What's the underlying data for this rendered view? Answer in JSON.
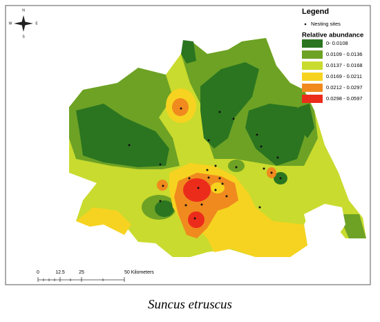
{
  "compass": {
    "north": "N",
    "south": "S",
    "east": "E",
    "west": "W"
  },
  "legend": {
    "title": "Legend",
    "sites_label": "Nesting sites",
    "abundance_title": "Relative abundance",
    "classes": [
      {
        "label": "0- 0.0108",
        "color": "#2b7520"
      },
      {
        "label": "0.0109 - 0.0136",
        "color": "#6da225"
      },
      {
        "label": "0.0137 - 0.0168",
        "color": "#c9db2e"
      },
      {
        "label": "0.0169 - 0.0211",
        "color": "#f6d320"
      },
      {
        "label": "0.0212 - 0.0297",
        "color": "#f08a1f"
      },
      {
        "label": "0.0298 - 0.0597",
        "color": "#ec2c1a"
      }
    ]
  },
  "scale_bar": {
    "labels": [
      "0",
      "12.5",
      "25",
      "50 Kilometers"
    ]
  },
  "caption": "Suncus etruscus"
}
